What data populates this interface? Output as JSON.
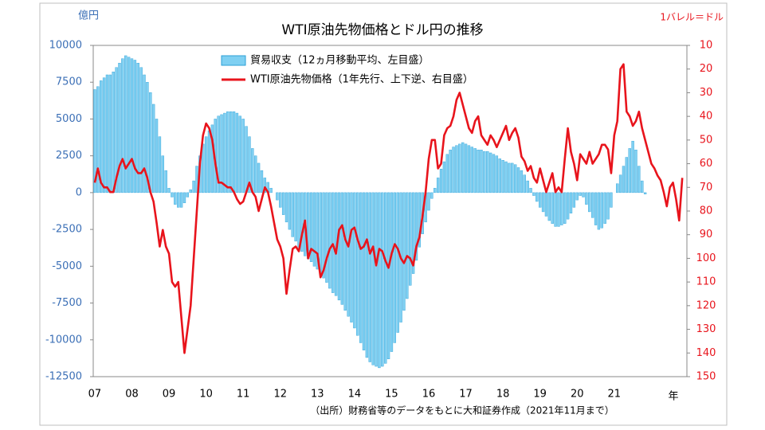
{
  "chart_data": {
    "type": "bar_line",
    "title": "WTI原油先物価格とドル円の推移",
    "y_label": "億円",
    "y2_label": "1バレル＝ドル",
    "x_label": "年",
    "source": "（出所）財務省等のデータをもとに大和証券作成（2021年11月まで）",
    "categories": [
      "07",
      null,
      null,
      null,
      null,
      null,
      null,
      null,
      null,
      null,
      null,
      null,
      "08",
      null,
      null,
      null,
      null,
      null,
      null,
      null,
      null,
      null,
      null,
      null,
      "09",
      null,
      null,
      null,
      null,
      null,
      null,
      null,
      null,
      null,
      null,
      null,
      "10",
      null,
      null,
      null,
      null,
      null,
      null,
      null,
      null,
      null,
      null,
      null,
      "11",
      null,
      null,
      null,
      null,
      null,
      null,
      null,
      null,
      null,
      null,
      null,
      "12",
      null,
      null,
      null,
      null,
      null,
      null,
      null,
      null,
      null,
      null,
      null,
      "13",
      null,
      null,
      null,
      null,
      null,
      null,
      null,
      null,
      null,
      null,
      null,
      "14",
      null,
      null,
      null,
      null,
      null,
      null,
      null,
      null,
      null,
      null,
      null,
      "15",
      null,
      null,
      null,
      null,
      null,
      null,
      null,
      null,
      null,
      null,
      null,
      "16",
      null,
      null,
      null,
      null,
      null,
      null,
      null,
      null,
      null,
      null,
      null,
      "17",
      null,
      null,
      null,
      null,
      null,
      null,
      null,
      null,
      null,
      null,
      null,
      "18",
      null,
      null,
      null,
      null,
      null,
      null,
      null,
      null,
      null,
      null,
      null,
      "19",
      null,
      null,
      null,
      null,
      null,
      null,
      null,
      null,
      null,
      null,
      null,
      "20",
      null,
      null,
      null,
      null,
      null,
      null,
      null,
      null,
      null,
      null,
      null,
      "21",
      null,
      null,
      null,
      null,
      null,
      null,
      null,
      null,
      null,
      null,
      null,
      null,
      null,
      null,
      null,
      null,
      null,
      null,
      null,
      null,
      null,
      null,
      null
    ],
    "series": [
      {
        "name": "貿易収支（12ヵ月移動平均、左目盛）",
        "type": "bar",
        "color": "#7fd0f2",
        "edge": "#2b9fd6",
        "values": [
          7000,
          7200,
          7600,
          7800,
          8000,
          8000,
          8200,
          8500,
          8800,
          9100,
          9300,
          9200,
          9100,
          9000,
          8800,
          8500,
          8000,
          7500,
          6800,
          6000,
          5000,
          3800,
          2500,
          1500,
          300,
          -300,
          -800,
          -1000,
          -1000,
          -700,
          -300,
          200,
          800,
          1800,
          2500,
          3300,
          3800,
          4200,
          4600,
          5000,
          5200,
          5300,
          5400,
          5500,
          5500,
          5500,
          5400,
          5200,
          5000,
          4500,
          3800,
          3000,
          2500,
          2000,
          1500,
          1000,
          700,
          300,
          0,
          -500,
          -1000,
          -1500,
          -2000,
          -2500,
          -3000,
          -3300,
          -3700,
          -4000,
          -4300,
          -4500,
          -4700,
          -5000,
          -5200,
          -5500,
          -5800,
          -6100,
          -6500,
          -6800,
          -7000,
          -7300,
          -7600,
          -8000,
          -8400,
          -8800,
          -9200,
          -9700,
          -10200,
          -10700,
          -11200,
          -11500,
          -11700,
          -11800,
          -11900,
          -11800,
          -11600,
          -11300,
          -10800,
          -10200,
          -9500,
          -8800,
          -8000,
          -7200,
          -6300,
          -5500,
          -4600,
          -3700,
          -2800,
          -2000,
          -1200,
          -400,
          300,
          1000,
          1600,
          2100,
          2600,
          2900,
          3100,
          3200,
          3300,
          3400,
          3300,
          3200,
          3100,
          3000,
          2900,
          2900,
          2800,
          2800,
          2700,
          2600,
          2500,
          2300,
          2200,
          2100,
          2000,
          2000,
          1900,
          1700,
          1500,
          1200,
          800,
          300,
          -200,
          -600,
          -1000,
          -1300,
          -1600,
          -1900,
          -2100,
          -2300,
          -2300,
          -2200,
          -2100,
          -1800,
          -1400,
          -1000,
          -500,
          -200,
          -300,
          -800,
          -1300,
          -1700,
          -2200,
          -2500,
          -2400,
          -2100,
          -1800,
          -1000,
          0,
          600,
          1200,
          1800,
          2400,
          3000,
          3500,
          2900,
          1800,
          800,
          -100,
          null,
          null,
          null,
          null,
          null,
          null,
          null,
          null,
          null,
          null,
          null,
          null,
          null
        ]
      },
      {
        "name": "WTI原油先物価格（1年先行、上下逆、右目盛）",
        "type": "line",
        "axis": "y2",
        "color": "#e8141c",
        "values": [
          68,
          62,
          68,
          70,
          70,
          72,
          72,
          66,
          61,
          58,
          62,
          60,
          58,
          62,
          64,
          64,
          62,
          66,
          72,
          76,
          85,
          95,
          88,
          95,
          98,
          110,
          112,
          110,
          125,
          140,
          130,
          120,
          100,
          80,
          60,
          48,
          43,
          45,
          50,
          60,
          68,
          68,
          69,
          70,
          70,
          72,
          75,
          77,
          76,
          72,
          68,
          72,
          74,
          80,
          75,
          70,
          72,
          78,
          85,
          92,
          95,
          100,
          115,
          105,
          96,
          95,
          97,
          90,
          84,
          100,
          96,
          97,
          98,
          108,
          105,
          100,
          96,
          94,
          98,
          88,
          86,
          92,
          95,
          88,
          87,
          92,
          96,
          95,
          92,
          98,
          95,
          103,
          96,
          97,
          101,
          104,
          98,
          94,
          96,
          100,
          102,
          99,
          100,
          103,
          95,
          91,
          82,
          72,
          58,
          50,
          50,
          62,
          60,
          48,
          45,
          44,
          40,
          33,
          30,
          35,
          40,
          45,
          47,
          42,
          40,
          48,
          50,
          52,
          48,
          50,
          53,
          50,
          47,
          44,
          50,
          47,
          45,
          49,
          57,
          59,
          63,
          61,
          66,
          68,
          62,
          67,
          72,
          68,
          64,
          72,
          70,
          72,
          58,
          45,
          55,
          60,
          67,
          56,
          58,
          60,
          55,
          60,
          58,
          56,
          52,
          52,
          54,
          64,
          48,
          42,
          20,
          18,
          38,
          40,
          44,
          42,
          38,
          45,
          50,
          55,
          60,
          62,
          65,
          67,
          72,
          78,
          70,
          68,
          75,
          84,
          66,
          null
        ]
      }
    ],
    "ylim": [
      -12500,
      10000
    ],
    "yticks": [
      -12500,
      -10000,
      -7500,
      -5000,
      -2500,
      0,
      2500,
      5000,
      7500,
      10000
    ],
    "y2lim": [
      10,
      150
    ],
    "y2_reversed": true,
    "y2ticks": [
      10,
      20,
      30,
      40,
      50,
      60,
      70,
      80,
      90,
      100,
      110,
      120,
      130,
      140,
      150
    ],
    "legend": "top"
  }
}
